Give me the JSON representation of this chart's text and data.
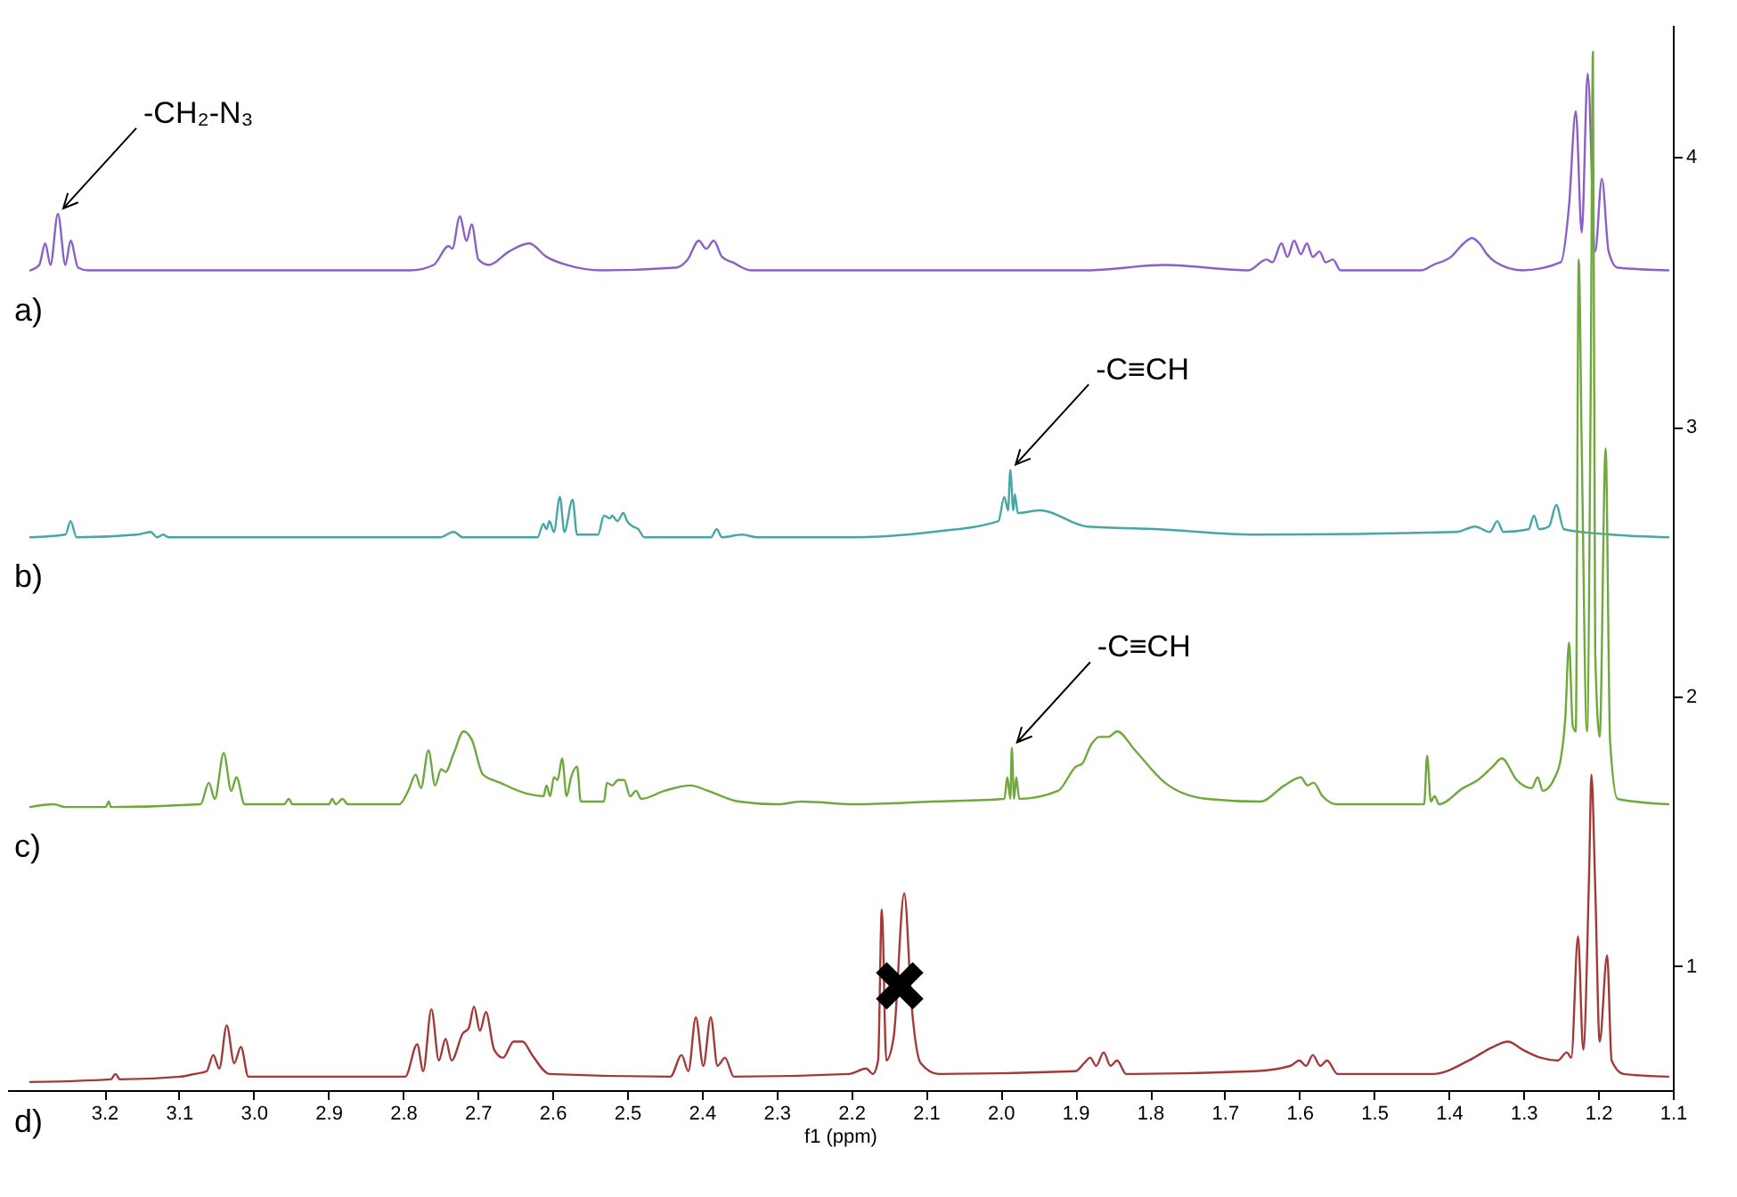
{
  "chart_data": {
    "type": "line",
    "xlabel": "f1 (ppm)",
    "xlim": [
      3.33,
      1.1
    ],
    "ylim": [
      0.54,
      4.49
    ],
    "xticks": [
      3.2,
      3.1,
      {
        "value": 3,
        "label": "3.0"
      },
      2.9,
      2.8,
      2.7,
      2.6,
      2.5,
      2.4,
      2.3,
      2.2,
      2.1,
      {
        "value": 2,
        "label": "2.0"
      },
      1.9,
      1.8,
      1.7,
      1.6,
      1.5,
      1.4,
      1.3,
      1.2,
      1.1
    ],
    "yticks": [
      1,
      2,
      3,
      4
    ],
    "annotations": [
      {
        "text": "-CH₂-N₃",
        "x": 3.262,
        "y": 3.79
      },
      {
        "text": "-C≡CH",
        "x": 1.987,
        "y": 2.84
      },
      {
        "text": "-C≡CH",
        "x": 1.985,
        "y": 1.81
      },
      {
        "text": "✖",
        "x": 2.135,
        "y": 0.91
      }
    ],
    "series": [
      {
        "name": "a)",
        "color": "#8a60c8",
        "x": [
          3.299,
          3.287,
          3.279,
          3.272,
          3.262,
          3.252,
          3.245,
          3.235,
          3.222,
          2.79,
          2.759,
          2.739,
          2.734,
          2.724,
          2.715,
          2.708,
          2.699,
          2.685,
          2.658,
          2.631,
          2.608,
          2.581,
          2.535,
          2.435,
          2.419,
          2.404,
          2.394,
          2.384,
          2.373,
          2.359,
          2.334,
          2.172,
          1.884,
          1.78,
          1.668,
          1.644,
          1.636,
          1.624,
          1.616,
          1.607,
          1.598,
          1.59,
          1.582,
          1.573,
          1.565,
          1.555,
          1.545,
          1.437,
          1.421,
          1.397,
          1.38,
          1.369,
          1.359,
          1.349,
          1.337,
          1.301,
          1.25,
          1.239,
          1.23,
          1.222,
          1.214,
          1.204,
          1.195,
          1.186,
          1.174,
          1.106
        ],
        "values": [
          3.58,
          3.6,
          3.68,
          3.6,
          3.79,
          3.6,
          3.69,
          3.59,
          3.58,
          3.58,
          3.6,
          3.67,
          3.66,
          3.78,
          3.69,
          3.75,
          3.62,
          3.6,
          3.65,
          3.68,
          3.63,
          3.6,
          3.58,
          3.59,
          3.62,
          3.69,
          3.66,
          3.69,
          3.63,
          3.61,
          3.58,
          3.58,
          3.58,
          3.6,
          3.58,
          3.62,
          3.61,
          3.68,
          3.63,
          3.69,
          3.64,
          3.68,
          3.63,
          3.65,
          3.61,
          3.62,
          3.58,
          3.58,
          3.6,
          3.63,
          3.68,
          3.7,
          3.68,
          3.64,
          3.61,
          3.58,
          3.61,
          3.82,
          4.17,
          3.72,
          4.31,
          3.65,
          3.92,
          3.65,
          3.59,
          3.58
        ]
      },
      {
        "name": "b)",
        "color": "#47a6a6",
        "x": [
          3.299,
          3.252,
          3.245,
          3.237,
          3.156,
          3.138,
          3.129,
          3.121,
          3.114,
          2.751,
          2.732,
          2.72,
          2.62,
          2.612,
          2.608,
          2.604,
          2.598,
          2.59,
          2.584,
          2.573,
          2.567,
          2.539,
          2.531,
          2.523,
          2.52,
          2.513,
          2.505,
          2.5,
          2.492,
          2.485,
          2.477,
          2.388,
          2.38,
          2.373,
          2.346,
          2.326,
          2.195,
          2.091,
          2.003,
          1.995,
          1.99,
          1.987,
          1.983,
          1.981,
          1.977,
          1.947,
          1.884,
          1.788,
          1.66,
          1.389,
          1.365,
          1.345,
          1.335,
          1.327,
          1.293,
          1.286,
          1.279,
          1.266,
          1.256,
          1.246,
          1.182,
          1.106
        ],
        "values": [
          2.59,
          2.6,
          2.65,
          2.59,
          2.6,
          2.61,
          2.59,
          2.6,
          2.59,
          2.59,
          2.61,
          2.59,
          2.59,
          2.64,
          2.62,
          2.65,
          2.61,
          2.74,
          2.61,
          2.73,
          2.6,
          2.6,
          2.67,
          2.66,
          2.67,
          2.65,
          2.68,
          2.65,
          2.63,
          2.62,
          2.59,
          2.59,
          2.62,
          2.59,
          2.6,
          2.59,
          2.59,
          2.61,
          2.65,
          2.74,
          2.69,
          2.84,
          2.69,
          2.75,
          2.68,
          2.69,
          2.63,
          2.62,
          2.6,
          2.61,
          2.63,
          2.61,
          2.65,
          2.61,
          2.62,
          2.67,
          2.62,
          2.63,
          2.71,
          2.62,
          2.6,
          2.59
        ]
      },
      {
        "name": "c)",
        "color": "#6fa83c",
        "x": [
          3.299,
          3.268,
          3.252,
          3.198,
          3.194,
          3.191,
          3.071,
          3.06,
          3.052,
          3.04,
          3.03,
          3.023,
          3.012,
          2.959,
          2.953,
          2.948,
          2.899,
          2.895,
          2.89,
          2.881,
          2.874,
          2.805,
          2.793,
          2.783,
          2.776,
          2.766,
          2.757,
          2.749,
          2.743,
          2.732,
          2.719,
          2.708,
          2.693,
          2.67,
          2.635,
          2.612,
          2.608,
          2.603,
          2.598,
          2.593,
          2.587,
          2.581,
          2.575,
          2.567,
          2.562,
          2.531,
          2.527,
          2.52,
          2.512,
          2.504,
          2.496,
          2.488,
          2.481,
          2.45,
          2.415,
          2.392,
          2.35,
          2.299,
          2.266,
          2.195,
          2.091,
          1.995,
          1.991,
          1.987,
          1.985,
          1.982,
          1.979,
          1.975,
          1.923,
          1.899,
          1.891,
          1.879,
          1.868,
          1.856,
          1.844,
          1.82,
          1.78,
          1.724,
          1.652,
          1.62,
          1.598,
          1.589,
          1.581,
          1.569,
          1.549,
          1.433,
          1.429,
          1.424,
          1.419,
          1.413,
          1.381,
          1.361,
          1.341,
          1.329,
          1.309,
          1.289,
          1.281,
          1.274,
          1.258,
          1.25,
          1.244,
          1.239,
          1.234,
          1.23,
          1.226,
          1.222,
          1.215,
          1.21,
          1.207,
          1.204,
          1.198,
          1.19,
          1.184,
          1.174,
          1.106
        ],
        "values": [
          1.59,
          1.6,
          1.59,
          1.59,
          1.61,
          1.59,
          1.6,
          1.68,
          1.62,
          1.79,
          1.65,
          1.7,
          1.6,
          1.6,
          1.62,
          1.6,
          1.6,
          1.62,
          1.6,
          1.62,
          1.6,
          1.6,
          1.65,
          1.71,
          1.66,
          1.8,
          1.67,
          1.73,
          1.72,
          1.79,
          1.87,
          1.84,
          1.71,
          1.68,
          1.64,
          1.63,
          1.67,
          1.63,
          1.7,
          1.69,
          1.77,
          1.63,
          1.7,
          1.74,
          1.61,
          1.61,
          1.68,
          1.67,
          1.69,
          1.69,
          1.63,
          1.65,
          1.62,
          1.65,
          1.67,
          1.65,
          1.61,
          1.6,
          1.61,
          1.6,
          1.61,
          1.62,
          1.7,
          1.62,
          1.81,
          1.62,
          1.7,
          1.62,
          1.65,
          1.74,
          1.75,
          1.82,
          1.85,
          1.85,
          1.87,
          1.8,
          1.68,
          1.62,
          1.61,
          1.67,
          1.7,
          1.67,
          1.68,
          1.63,
          1.6,
          1.6,
          1.78,
          1.61,
          1.63,
          1.6,
          1.66,
          1.69,
          1.74,
          1.77,
          1.69,
          1.66,
          1.7,
          1.65,
          1.7,
          1.77,
          1.92,
          2.2,
          1.89,
          1.87,
          3.62,
          2.92,
          1.87,
          3.14,
          4.39,
          2.17,
          1.85,
          2.92,
          1.83,
          1.62,
          1.6
        ]
      },
      {
        "name": "d)",
        "color": "#a33a3a",
        "x": [
          3.299,
          3.191,
          3.185,
          3.179,
          3.098,
          3.079,
          3.063,
          3.054,
          3.046,
          3.036,
          3.026,
          3.017,
          3.007,
          2.797,
          2.781,
          2.773,
          2.762,
          2.752,
          2.743,
          2.735,
          2.72,
          2.712,
          2.705,
          2.697,
          2.689,
          2.678,
          2.666,
          2.652,
          2.64,
          2.627,
          2.604,
          2.442,
          2.427,
          2.418,
          2.408,
          2.398,
          2.388,
          2.379,
          2.369,
          2.357,
          2.203,
          2.18,
          2.171,
          2.164,
          2.159,
          2.153,
          2.143,
          2.129,
          2.119,
          2.107,
          2.083,
          1.9,
          1.888,
          1.88,
          1.872,
          1.862,
          1.853,
          1.844,
          1.832,
          1.66,
          1.612,
          1.6,
          1.591,
          1.582,
          1.572,
          1.563,
          1.549,
          1.421,
          1.373,
          1.341,
          1.321,
          1.301,
          1.277,
          1.254,
          1.242,
          1.236,
          1.227,
          1.22,
          1.212,
          1.209,
          1.204,
          1.198,
          1.188,
          1.182,
          1.166,
          1.106
        ],
        "values": [
          0.57,
          0.58,
          0.6,
          0.58,
          0.59,
          0.6,
          0.61,
          0.67,
          0.62,
          0.78,
          0.64,
          0.7,
          0.59,
          0.59,
          0.71,
          0.61,
          0.84,
          0.65,
          0.73,
          0.65,
          0.75,
          0.77,
          0.85,
          0.76,
          0.83,
          0.69,
          0.66,
          0.72,
          0.72,
          0.67,
          0.6,
          0.59,
          0.67,
          0.61,
          0.81,
          0.63,
          0.81,
          0.63,
          0.66,
          0.59,
          0.6,
          0.62,
          0.6,
          0.65,
          1.21,
          0.65,
          0.74,
          1.27,
          0.85,
          0.64,
          0.6,
          0.61,
          0.64,
          0.66,
          0.63,
          0.68,
          0.63,
          0.65,
          0.6,
          0.61,
          0.63,
          0.65,
          0.63,
          0.67,
          0.63,
          0.65,
          0.6,
          0.6,
          0.65,
          0.7,
          0.72,
          0.69,
          0.66,
          0.65,
          0.68,
          0.66,
          1.11,
          0.69,
          1.36,
          1.71,
          1.3,
          0.72,
          1.04,
          0.65,
          0.6,
          0.59
        ]
      }
    ]
  }
}
